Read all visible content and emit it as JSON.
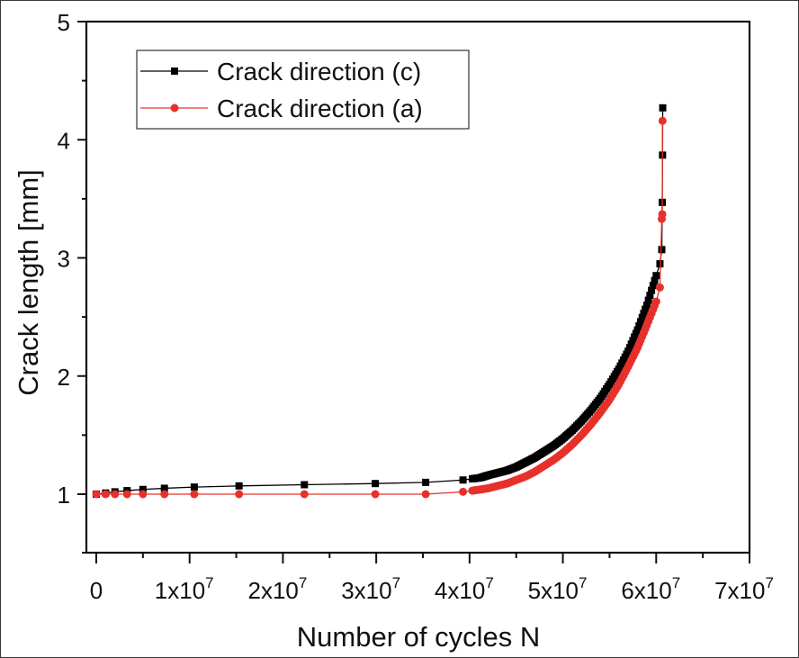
{
  "chart_data": {
    "type": "line",
    "title": "",
    "xlabel": "Number of cycles  N",
    "ylabel": "Crack length  [mm]",
    "xlim": [
      -1000000,
      70000000
    ],
    "ylim": [
      0.5,
      5
    ],
    "x_ticks": [
      {
        "value": 0,
        "label": "0",
        "exp": ""
      },
      {
        "value": 10000000,
        "label": "1x10",
        "exp": "7"
      },
      {
        "value": 20000000,
        "label": "2x10",
        "exp": "7"
      },
      {
        "value": 30000000,
        "label": "3x10",
        "exp": "7"
      },
      {
        "value": 40000000,
        "label": "4x10",
        "exp": "7"
      },
      {
        "value": 50000000,
        "label": "5x10",
        "exp": "7"
      },
      {
        "value": 60000000,
        "label": "6x10",
        "exp": "7"
      },
      {
        "value": 70000000,
        "label": "7x10",
        "exp": "7"
      }
    ],
    "y_ticks": [
      1,
      2,
      3,
      4,
      5
    ],
    "grid": false,
    "legend_position": "upper-left",
    "series": [
      {
        "name": "Crack direction (c)",
        "color": "#000000",
        "marker": "square",
        "x": [
          0,
          1000000,
          2000000,
          3300000,
          5000000,
          7300000,
          10500000,
          15300000,
          22300000,
          29900000,
          35300000,
          39300000,
          40300000,
          41200000,
          42000000,
          43000000,
          44000000,
          45000000,
          46000000,
          47000000,
          48000000,
          49000000,
          50000000,
          51000000,
          52000000,
          53000000,
          54000000,
          55000000,
          56000000,
          57000000,
          58000000,
          59000000,
          60000000,
          60400000,
          60600000,
          60650000,
          60680000,
          60700000
        ],
        "y": [
          1.0,
          1.01,
          1.02,
          1.03,
          1.04,
          1.05,
          1.06,
          1.07,
          1.08,
          1.09,
          1.1,
          1.12,
          1.13,
          1.14,
          1.16,
          1.18,
          1.2,
          1.23,
          1.27,
          1.31,
          1.36,
          1.41,
          1.47,
          1.54,
          1.62,
          1.71,
          1.81,
          1.93,
          2.06,
          2.21,
          2.39,
          2.6,
          2.85,
          2.95,
          3.07,
          3.47,
          3.87,
          4.27
        ]
      },
      {
        "name": "Crack direction (a)",
        "color": "#e8302a",
        "marker": "circle",
        "x": [
          0,
          1000000,
          2000000,
          3300000,
          5000000,
          7300000,
          10500000,
          15300000,
          22300000,
          29900000,
          35300000,
          39300000,
          40300000,
          41200000,
          42000000,
          43000000,
          44000000,
          45000000,
          46000000,
          47000000,
          48000000,
          49000000,
          50000000,
          51000000,
          52000000,
          53000000,
          54000000,
          55000000,
          56000000,
          57000000,
          58000000,
          59000000,
          60000000,
          60400000,
          60600000,
          60650000,
          60680000
        ],
        "y": [
          1.0,
          1.0,
          1.0,
          1.0,
          1.0,
          1.0,
          1.0,
          1.0,
          1.0,
          1.0,
          1.0,
          1.02,
          1.03,
          1.04,
          1.05,
          1.07,
          1.09,
          1.12,
          1.15,
          1.19,
          1.24,
          1.29,
          1.35,
          1.42,
          1.5,
          1.59,
          1.69,
          1.8,
          1.93,
          2.08,
          2.24,
          2.43,
          2.63,
          2.75,
          3.33,
          3.37,
          4.16
        ]
      }
    ]
  },
  "legend": {
    "items": [
      {
        "label": "Crack direction (c)"
      },
      {
        "label": "Crack direction (a)"
      }
    ]
  },
  "axes": {
    "xlabel": "Number of cycles  N",
    "ylabel": "Crack length  [mm]"
  }
}
